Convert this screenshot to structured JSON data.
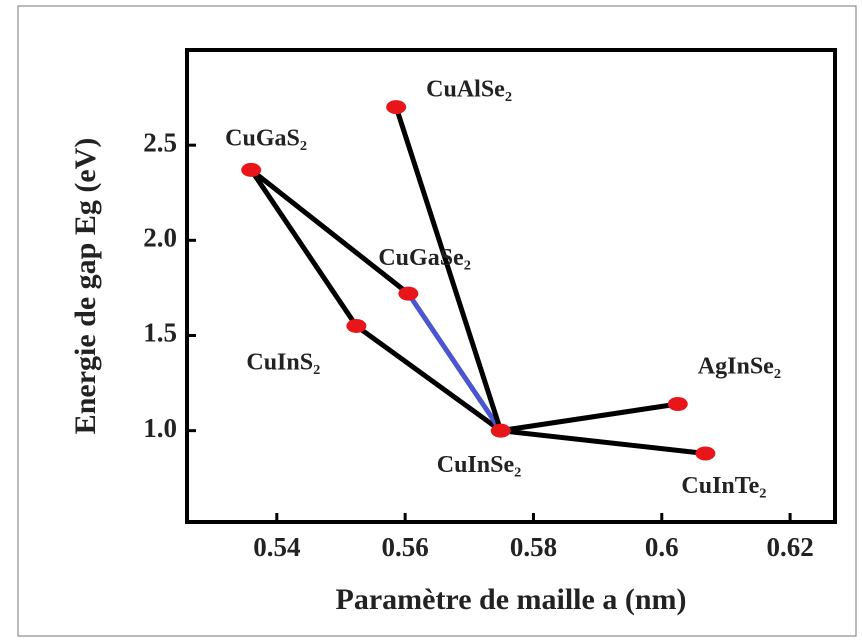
{
  "chart_data": {
    "type": "scatter",
    "xlabel": "Paramètre de maille a (nm)",
    "ylabel": "Energie de gap Eg (eV)",
    "points": [
      {
        "name": "CuGaS₂",
        "x": 0.536,
        "y": 2.37
      },
      {
        "name": "CuAlSe₂",
        "x": 0.5586,
        "y": 2.7
      },
      {
        "name": "CuGaSe₂",
        "x": 0.5605,
        "y": 1.72
      },
      {
        "name": "CuInS₂",
        "x": 0.5524,
        "y": 1.55
      },
      {
        "name": "CuInSe₂",
        "x": 0.5749,
        "y": 1.0
      },
      {
        "name": "AgInSe₂",
        "x": 0.6025,
        "y": 1.14
      },
      {
        "name": "CuInTe₂",
        "x": 0.6068,
        "y": 0.88
      }
    ],
    "links": [
      {
        "from": 0,
        "to": 3,
        "color": "#000000"
      },
      {
        "from": 3,
        "to": 4,
        "color": "#000000"
      },
      {
        "from": 0,
        "to": 2,
        "color": "#000000"
      },
      {
        "from": 2,
        "to": 4,
        "color": "#4a55d0"
      },
      {
        "from": 1,
        "to": 4,
        "color": "#000000"
      },
      {
        "from": 4,
        "to": 5,
        "color": "#000000"
      },
      {
        "from": 4,
        "to": 6,
        "color": "#000000"
      }
    ],
    "point_color": "#e8161b",
    "xlim": [
      0.526,
      0.627
    ],
    "ylim": [
      0.52,
      3.0
    ],
    "xticks": [
      0.54,
      0.56,
      0.58,
      0.6,
      0.62
    ],
    "yticks": [
      {
        "value": 1,
        "label": "1.0"
      },
      1.5,
      {
        "value": 2,
        "label": "2.0"
      },
      2.5
    ]
  }
}
